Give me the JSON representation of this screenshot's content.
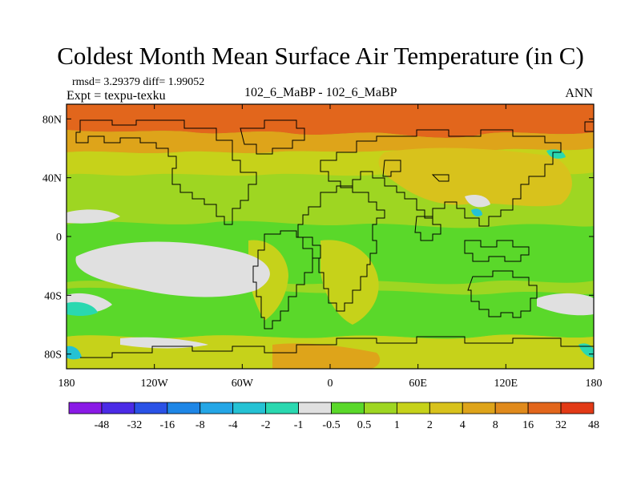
{
  "title": "Coldest Month Mean Surface Air Temperature (in C)",
  "stats": "rmsd= 3.29379 diff= 1.99052",
  "expt": "Expt = texpu-texku",
  "case_label": "102_6_MaBP - 102_6_MaBP",
  "season": "ANN",
  "lon_ticks": [
    "180",
    "120W",
    "60W",
    "0",
    "60E",
    "120E",
    "180"
  ],
  "lat_ticks": [
    "80N",
    "40N",
    "0",
    "40S",
    "80S"
  ],
  "colorbar": {
    "colors": [
      "#8a1ae6",
      "#4b2be6",
      "#2a52e6",
      "#1e86e6",
      "#24a6e6",
      "#25c2d4",
      "#2ad8b0",
      "#e0e0e0",
      "#5ad82a",
      "#9ed622",
      "#c6d21a",
      "#d8c21c",
      "#dea41a",
      "#e08a1c",
      "#e2661c",
      "#e23a16"
    ],
    "labels": [
      "-48",
      "-32",
      "-16",
      "-8",
      "-4",
      "-2",
      "-1",
      "-0.5",
      "0.5",
      "1",
      "2",
      "4",
      "8",
      "16",
      "32",
      "48"
    ]
  }
}
